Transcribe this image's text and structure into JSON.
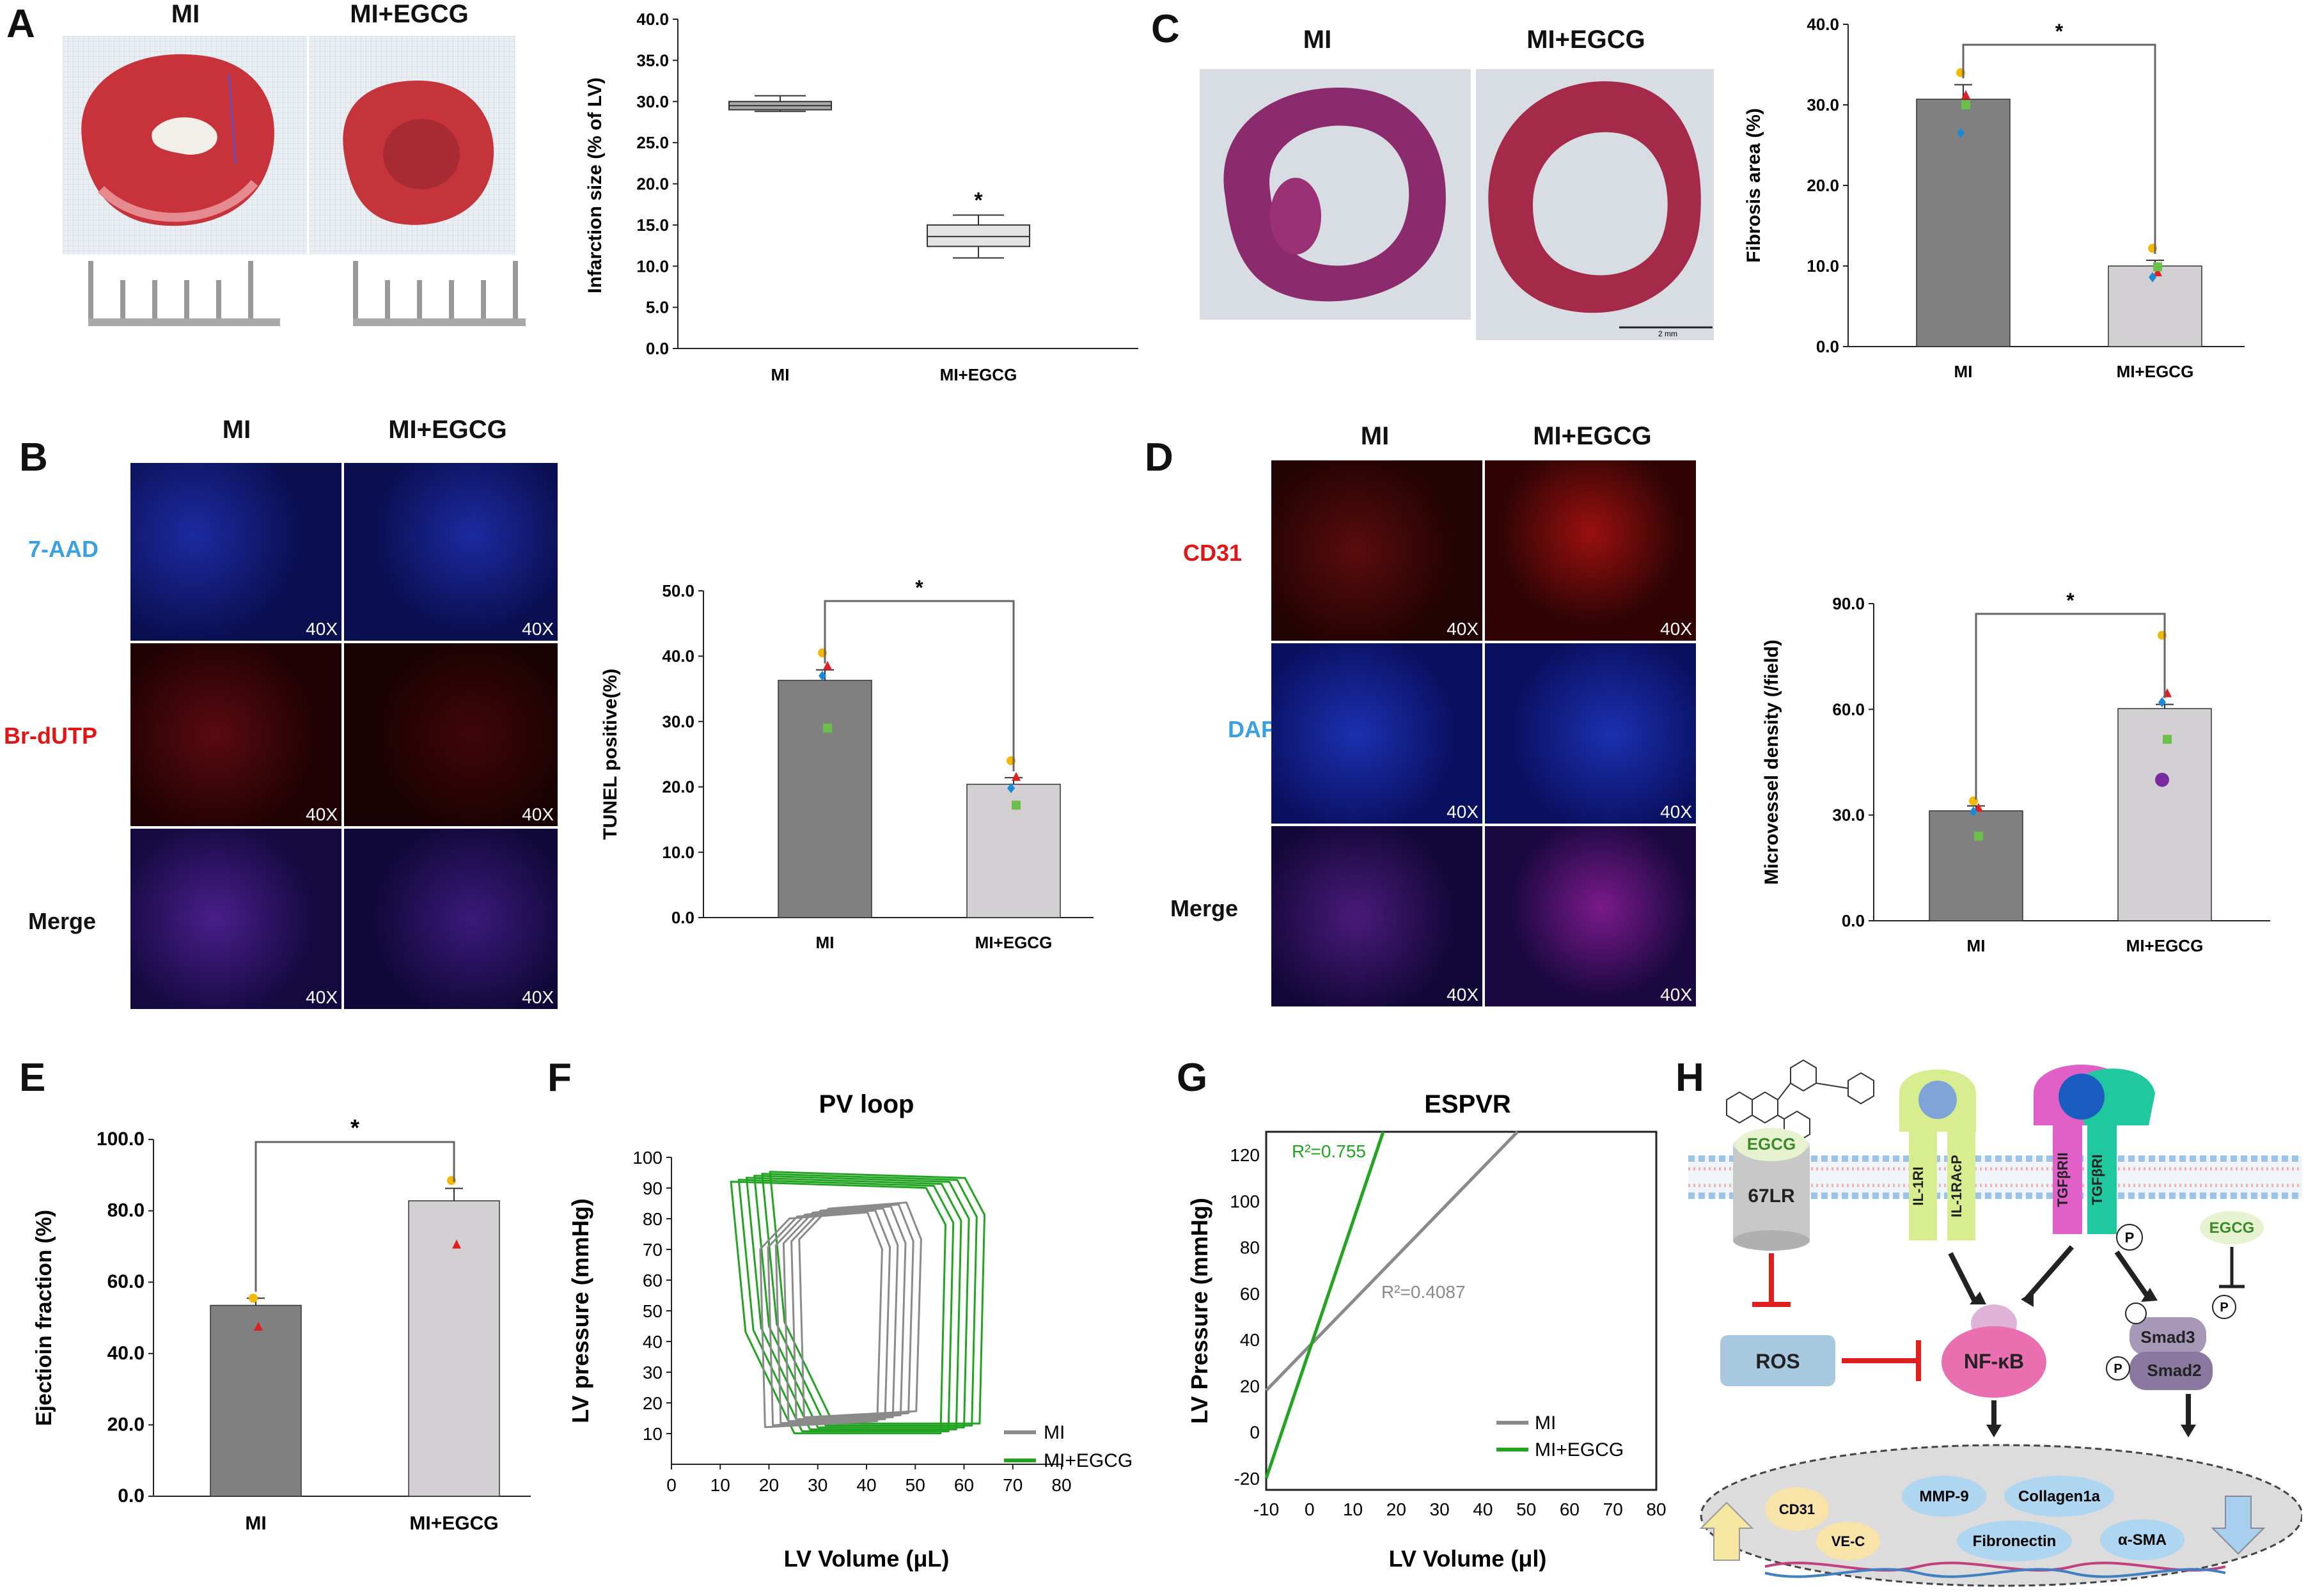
{
  "colors": {
    "mi_bar": "#808080",
    "egcg_bar": "#d3d0d3",
    "green": "#22a422",
    "blue_label": "#3aa0e0",
    "red_label": "#e01515"
  },
  "panels": {
    "A": {
      "label": "A",
      "hdr_mi": "MI",
      "hdr_egcg": "MI+EGCG"
    },
    "B": {
      "label": "B",
      "hdr_mi": "MI",
      "hdr_egcg": "MI+EGCG",
      "rows": [
        "7-AAD",
        "Br-dUTP",
        "Merge"
      ],
      "mag": "40X"
    },
    "C": {
      "label": "C",
      "hdr_mi": "MI",
      "hdr_egcg": "MI+EGCG",
      "scalebar": "2 mm"
    },
    "D": {
      "label": "D",
      "hdr_mi": "MI",
      "hdr_egcg": "MI+EGCG",
      "rows": [
        "CD31",
        "DAPI",
        "Merge"
      ],
      "mag": "40X"
    },
    "E": {
      "label": "E"
    },
    "F": {
      "label": "F"
    },
    "G": {
      "label": "G"
    },
    "H": {
      "label": "H"
    }
  },
  "chart_data": [
    {
      "id": "A",
      "type": "box",
      "title": "",
      "ylabel": "Infarction size (% of LV)",
      "ylim": [
        0,
        40
      ],
      "yticks": [
        "0.0",
        "5.0",
        "10.0",
        "15.0",
        "20.0",
        "25.0",
        "30.0",
        "35.0",
        "40.0"
      ],
      "categories": [
        "MI",
        "MI+EGCG"
      ],
      "boxes": [
        {
          "min": 28.8,
          "q1": 29.0,
          "median": 29.5,
          "q3": 30.0,
          "max": 30.7
        },
        {
          "min": 11.0,
          "q1": 12.4,
          "median": 13.6,
          "q3": 15.0,
          "max": 16.2
        }
      ],
      "sig": "*"
    },
    {
      "id": "C",
      "type": "bar",
      "ylabel": "Fibrosis area (%)",
      "ylim": [
        0,
        40
      ],
      "yticks": [
        "0.0",
        "10.0",
        "20.0",
        "30.0",
        "40.0"
      ],
      "categories": [
        "MI",
        "MI+EGCG"
      ],
      "values": [
        30.7,
        10.0
      ],
      "errors": [
        1.8,
        0.7
      ],
      "points": [
        [
          34.0,
          31.2,
          26.5,
          30.0
        ],
        [
          12.2,
          9.2,
          8.6,
          9.9
        ]
      ],
      "sig": "*"
    },
    {
      "id": "B",
      "type": "bar",
      "ylabel": "TUNEL positive(%)",
      "ylim": [
        0,
        50
      ],
      "yticks": [
        "0.0",
        "10.0",
        "20.0",
        "30.0",
        "40.0",
        "50.0"
      ],
      "categories": [
        "MI",
        "MI+EGCG"
      ],
      "values": [
        36.3,
        20.4
      ],
      "errors": [
        1.6,
        1.0
      ],
      "points": [
        [
          40.5,
          38.5,
          37.0,
          29.0
        ],
        [
          24.0,
          21.5,
          19.8,
          17.2
        ]
      ],
      "sig": "*"
    },
    {
      "id": "D",
      "type": "bar",
      "ylabel": "Microvessel density (/field)",
      "ylim": [
        0,
        90
      ],
      "yticks": [
        "0.0",
        "30.0",
        "60.0",
        "90.0"
      ],
      "categories": [
        "MI",
        "MI+EGCG"
      ],
      "values": [
        31.2,
        60.2
      ],
      "errors": [
        1.4,
        1.2
      ],
      "points": [
        [
          34.0,
          32.0,
          31.0,
          24.0
        ],
        [
          81.0,
          64.5,
          62.0,
          51.5,
          40.0
        ]
      ],
      "sig": "*"
    },
    {
      "id": "E",
      "type": "bar",
      "ylabel": "Ejectioin fraction (%)",
      "ylim": [
        0,
        100
      ],
      "yticks": [
        "0.0",
        "20.0",
        "40.0",
        "60.0",
        "80.0",
        "100.0"
      ],
      "categories": [
        "MI",
        "MI+EGCG"
      ],
      "values": [
        53.5,
        82.8
      ],
      "errors": [
        2.0,
        3.5
      ],
      "points": [
        [
          55.5,
          47.5
        ],
        [
          88.5,
          70.5
        ]
      ],
      "sig": "*"
    },
    {
      "id": "F",
      "type": "line",
      "title": "PV loop",
      "xlabel": "LV Volume (μL)",
      "ylabel": "LV pressure (mmHg)",
      "xlim": [
        0,
        80
      ],
      "ylim": [
        0,
        100
      ],
      "xticks": [
        "0",
        "10",
        "20",
        "30",
        "40",
        "50",
        "60",
        "70",
        "80"
      ],
      "yticks": [
        "10",
        "20",
        "30",
        "40",
        "50",
        "60",
        "70",
        "80",
        "90",
        "100"
      ],
      "series": [
        {
          "name": "MI",
          "loop": [
            [
              24,
              14
            ],
            [
              23,
              72
            ],
            [
              29,
              82
            ],
            [
              45,
              84
            ],
            [
              48,
              72
            ],
            [
              47,
              16
            ]
          ]
        },
        {
          "name": "MI+EGCG",
          "loop": [
            [
              30,
              12
            ],
            [
              20,
              45
            ],
            [
              17,
              94
            ],
            [
              57,
              92
            ],
            [
              61,
              80
            ],
            [
              60,
              12
            ]
          ]
        }
      ],
      "legend": [
        "MI",
        "MI+EGCG"
      ]
    },
    {
      "id": "G",
      "type": "line",
      "title": "ESPVR",
      "xlabel": "LV Volume (μl)",
      "ylabel": "LV Pressure (mmHg)",
      "xlim": [
        -10,
        80
      ],
      "ylim": [
        -25,
        130
      ],
      "xticks": [
        "-10",
        "0",
        "10",
        "20",
        "30",
        "40",
        "50",
        "60",
        "70",
        "80"
      ],
      "yticks": [
        "-20",
        "0",
        "20",
        "40",
        "60",
        "80",
        "100",
        "120"
      ],
      "series": [
        {
          "name": "MI",
          "x": [
            -10,
            48
          ],
          "y": [
            18,
            130
          ],
          "r2": "R²=0.4087"
        },
        {
          "name": "MI+EGCG",
          "x": [
            -10,
            17
          ],
          "y": [
            -20,
            130
          ],
          "r2": "R²=0.755"
        }
      ],
      "legend": [
        "MI",
        "MI+EGCG"
      ]
    }
  ],
  "pathway": {
    "receptors": [
      "EGCG",
      "67LR",
      "IL-1RI",
      "IL-1RAcP",
      "TGFβRII",
      "TGFβRI"
    ],
    "p": "P",
    "egcg2": "EGCG",
    "ros": "ROS",
    "nfkb": "NF-κB",
    "smad3": "Smad3",
    "smad2": "Smad2",
    "targets": [
      "CD31",
      "VE-C",
      "MMP-9",
      "Collagen1a",
      "Fibronectin",
      "α-SMA"
    ]
  }
}
